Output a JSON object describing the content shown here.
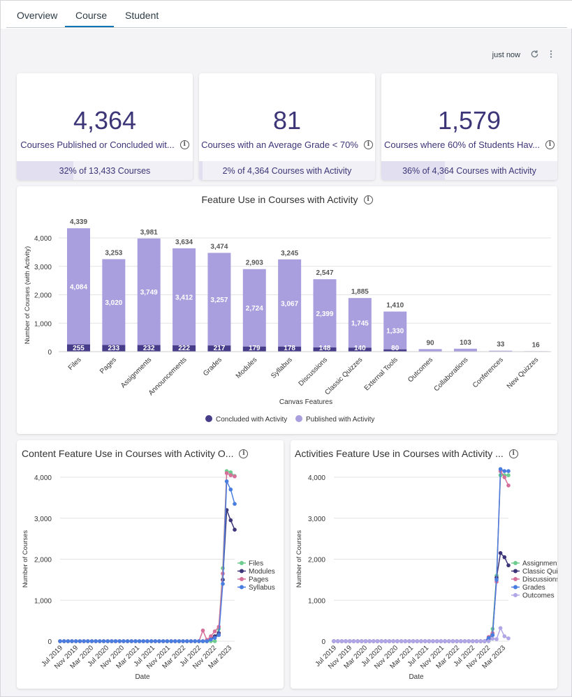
{
  "tabs": [
    {
      "label": "Overview"
    },
    {
      "label": "Course"
    },
    {
      "label": "Student"
    }
  ],
  "refresh": {
    "status": "just now"
  },
  "kpis": [
    {
      "value": "4,364",
      "label": "Courses Published or Concluded wit...",
      "footer": "32% of 13,433 Courses",
      "fraction": 0.32
    },
    {
      "value": "81",
      "label": "Courses with an Average Grade < 70%",
      "footer": "2% of 4,364 Courses with Activity",
      "fraction": 0.02
    },
    {
      "value": "1,579",
      "label": "Courses where 60% of Students Hav...",
      "footer": "36% of 4,364 Courses with Activity",
      "fraction": 0.36
    }
  ],
  "colors": {
    "concluded": "#463c8a",
    "published": "#a99fde",
    "accent": "#0374b5"
  },
  "chart_data": [
    {
      "type": "bar",
      "title": "Feature Use in Courses with Activity",
      "xlabel": "Canvas Features",
      "ylabel": "Number of Courses (with Activity)",
      "ylim": [
        0,
        4000
      ],
      "yticks": [
        0,
        1000,
        2000,
        3000,
        4000
      ],
      "ytick_labels": [
        "0",
        "1,000",
        "2,000",
        "3,000",
        "4,000"
      ],
      "categories": [
        "Files",
        "Pages",
        "Assignments",
        "Announcements",
        "Grades",
        "Modules",
        "Syllabus",
        "Discussions",
        "Classic Quizzes",
        "External Tools",
        "Outcomes",
        "Collaborations",
        "Conferences",
        "New Quizzes"
      ],
      "series": [
        {
          "name": "Concluded with Activity",
          "values": [
            255,
            233,
            232,
            222,
            217,
            179,
            178,
            148,
            140,
            80,
            5,
            8,
            3,
            2
          ],
          "labels": [
            "255",
            "233",
            "232",
            "222",
            "217",
            "179",
            "178",
            "148",
            "140",
            "80",
            "",
            "",
            "",
            ""
          ]
        },
        {
          "name": "Published with Activity",
          "values": [
            4084,
            3020,
            3749,
            3412,
            3257,
            2724,
            3067,
            2399,
            1745,
            1330,
            85,
            95,
            30,
            14
          ],
          "labels": [
            "4,084",
            "3,020",
            "3,749",
            "3,412",
            "3,257",
            "2,724",
            "3,067",
            "2,399",
            "1,745",
            "1,330",
            "",
            "",
            "",
            ""
          ]
        }
      ],
      "totals": [
        "4,339",
        "3,253",
        "3,981",
        "3,634",
        "3,474",
        "2,903",
        "3,245",
        "2,547",
        "1,885",
        "1,410",
        "90",
        "103",
        "33",
        "16"
      ],
      "legend": "bottom"
    },
    {
      "type": "line",
      "title": "Content Feature Use in Courses with Activity O...",
      "xlabel": "Date",
      "ylabel": "Number of Courses",
      "ylim": [
        0,
        4200
      ],
      "yticks": [
        0,
        1000,
        2000,
        3000,
        4000
      ],
      "ytick_labels": [
        "0",
        "1,000",
        "2,000",
        "3,000",
        "4,000"
      ],
      "xtick_labels": [
        "Jul 2019",
        "Nov 2019",
        "Mar 2020",
        "Jul 2020",
        "Nov 2020",
        "Mar 2021",
        "Jul 2021",
        "Nov 2021",
        "Mar 2022",
        "Jul 2022",
        "Nov 2022",
        "Mar 2023"
      ],
      "series": [
        {
          "name": "Files",
          "color": "#6ccb8e",
          "values": [
            0,
            0,
            0,
            0,
            0,
            0,
            0,
            0,
            0,
            0,
            0,
            0,
            0,
            0,
            0,
            0,
            0,
            0,
            0,
            0,
            0,
            0,
            0,
            0,
            0,
            0,
            0,
            0,
            0,
            0,
            0,
            0,
            0,
            0,
            0,
            0,
            0,
            0,
            0,
            0,
            300,
            1780,
            4150,
            4120,
            4030
          ]
        },
        {
          "name": "Modules",
          "color": "#3c3577",
          "values": [
            0,
            0,
            0,
            0,
            0,
            0,
            0,
            0,
            0,
            0,
            0,
            0,
            0,
            0,
            0,
            0,
            0,
            0,
            0,
            0,
            0,
            0,
            0,
            0,
            0,
            0,
            0,
            0,
            0,
            0,
            0,
            0,
            0,
            0,
            0,
            0,
            0,
            0,
            60,
            120,
            200,
            1500,
            3200,
            2950,
            2720
          ]
        },
        {
          "name": "Pages",
          "color": "#d6709a",
          "values": [
            0,
            0,
            0,
            0,
            0,
            0,
            0,
            0,
            0,
            0,
            0,
            0,
            0,
            0,
            0,
            0,
            0,
            0,
            0,
            0,
            0,
            0,
            0,
            0,
            0,
            0,
            0,
            0,
            0,
            0,
            0,
            0,
            0,
            0,
            0,
            0,
            260,
            30,
            120,
            240,
            350,
            1650,
            4100,
            4050,
            4020
          ]
        },
        {
          "name": "Syllabus",
          "color": "#4a7de0",
          "values": [
            0,
            0,
            0,
            0,
            0,
            0,
            0,
            0,
            0,
            0,
            0,
            0,
            0,
            0,
            0,
            0,
            0,
            0,
            0,
            0,
            0,
            0,
            0,
            0,
            0,
            0,
            0,
            0,
            0,
            0,
            0,
            0,
            0,
            0,
            0,
            0,
            0,
            0,
            40,
            80,
            150,
            1400,
            3900,
            3700,
            3350
          ]
        }
      ],
      "legend": "right"
    },
    {
      "type": "line",
      "title": "Activities Feature Use in Courses with Activity ...",
      "xlabel": "Date",
      "ylabel": "Number of Courses",
      "ylim": [
        0,
        4200
      ],
      "yticks": [
        0,
        1000,
        2000,
        3000,
        4000
      ],
      "ytick_labels": [
        "0",
        "1,000",
        "2,000",
        "3,000",
        "4,000"
      ],
      "xtick_labels": [
        "Jul 2019",
        "Nov 2019",
        "Mar 2020",
        "Jul 2020",
        "Nov 2020",
        "Mar 2021",
        "Jul 2021",
        "Nov 2021",
        "Mar 2022",
        "Jul 2022",
        "Nov 2022",
        "Mar 2023"
      ],
      "series": [
        {
          "name": "Assignments",
          "color": "#6ccb8e",
          "values": [
            0,
            0,
            0,
            0,
            0,
            0,
            0,
            0,
            0,
            0,
            0,
            0,
            0,
            0,
            0,
            0,
            0,
            0,
            0,
            0,
            0,
            0,
            0,
            0,
            0,
            0,
            0,
            0,
            0,
            0,
            0,
            0,
            0,
            0,
            0,
            0,
            0,
            0,
            0,
            0,
            300,
            1600,
            4050,
            4050,
            4050
          ]
        },
        {
          "name": "Classic Quizzes",
          "color": "#3c3577",
          "values": [
            0,
            0,
            0,
            0,
            0,
            0,
            0,
            0,
            0,
            0,
            0,
            0,
            0,
            0,
            0,
            0,
            0,
            0,
            0,
            0,
            0,
            0,
            0,
            0,
            0,
            0,
            0,
            0,
            0,
            0,
            0,
            0,
            0,
            0,
            0,
            0,
            0,
            0,
            0,
            60,
            150,
            1550,
            2150,
            2050,
            1850
          ]
        },
        {
          "name": "Discussions",
          "color": "#d6709a",
          "values": [
            0,
            0,
            0,
            0,
            0,
            0,
            0,
            0,
            0,
            0,
            0,
            0,
            0,
            0,
            0,
            0,
            0,
            0,
            0,
            0,
            0,
            0,
            0,
            0,
            0,
            0,
            0,
            0,
            0,
            0,
            0,
            0,
            0,
            0,
            0,
            0,
            0,
            0,
            0,
            100,
            200,
            1450,
            4150,
            4000,
            3800
          ]
        },
        {
          "name": "Grades",
          "color": "#4a7de0",
          "values": [
            0,
            0,
            0,
            0,
            0,
            0,
            0,
            0,
            0,
            0,
            0,
            0,
            0,
            0,
            0,
            0,
            0,
            0,
            0,
            0,
            0,
            0,
            0,
            0,
            0,
            0,
            0,
            0,
            0,
            0,
            0,
            0,
            0,
            0,
            0,
            0,
            0,
            0,
            0,
            80,
            150,
            1500,
            4200,
            4150,
            4150
          ]
        },
        {
          "name": "Outcomes",
          "color": "#b1a6e6",
          "values": [
            0,
            0,
            0,
            0,
            0,
            0,
            0,
            0,
            0,
            0,
            0,
            0,
            0,
            0,
            0,
            0,
            0,
            0,
            0,
            0,
            0,
            0,
            0,
            0,
            0,
            0,
            0,
            0,
            0,
            0,
            0,
            0,
            0,
            0,
            0,
            0,
            0,
            0,
            0,
            0,
            60,
            50,
            320,
            120,
            70
          ]
        }
      ],
      "legend": "right"
    }
  ]
}
